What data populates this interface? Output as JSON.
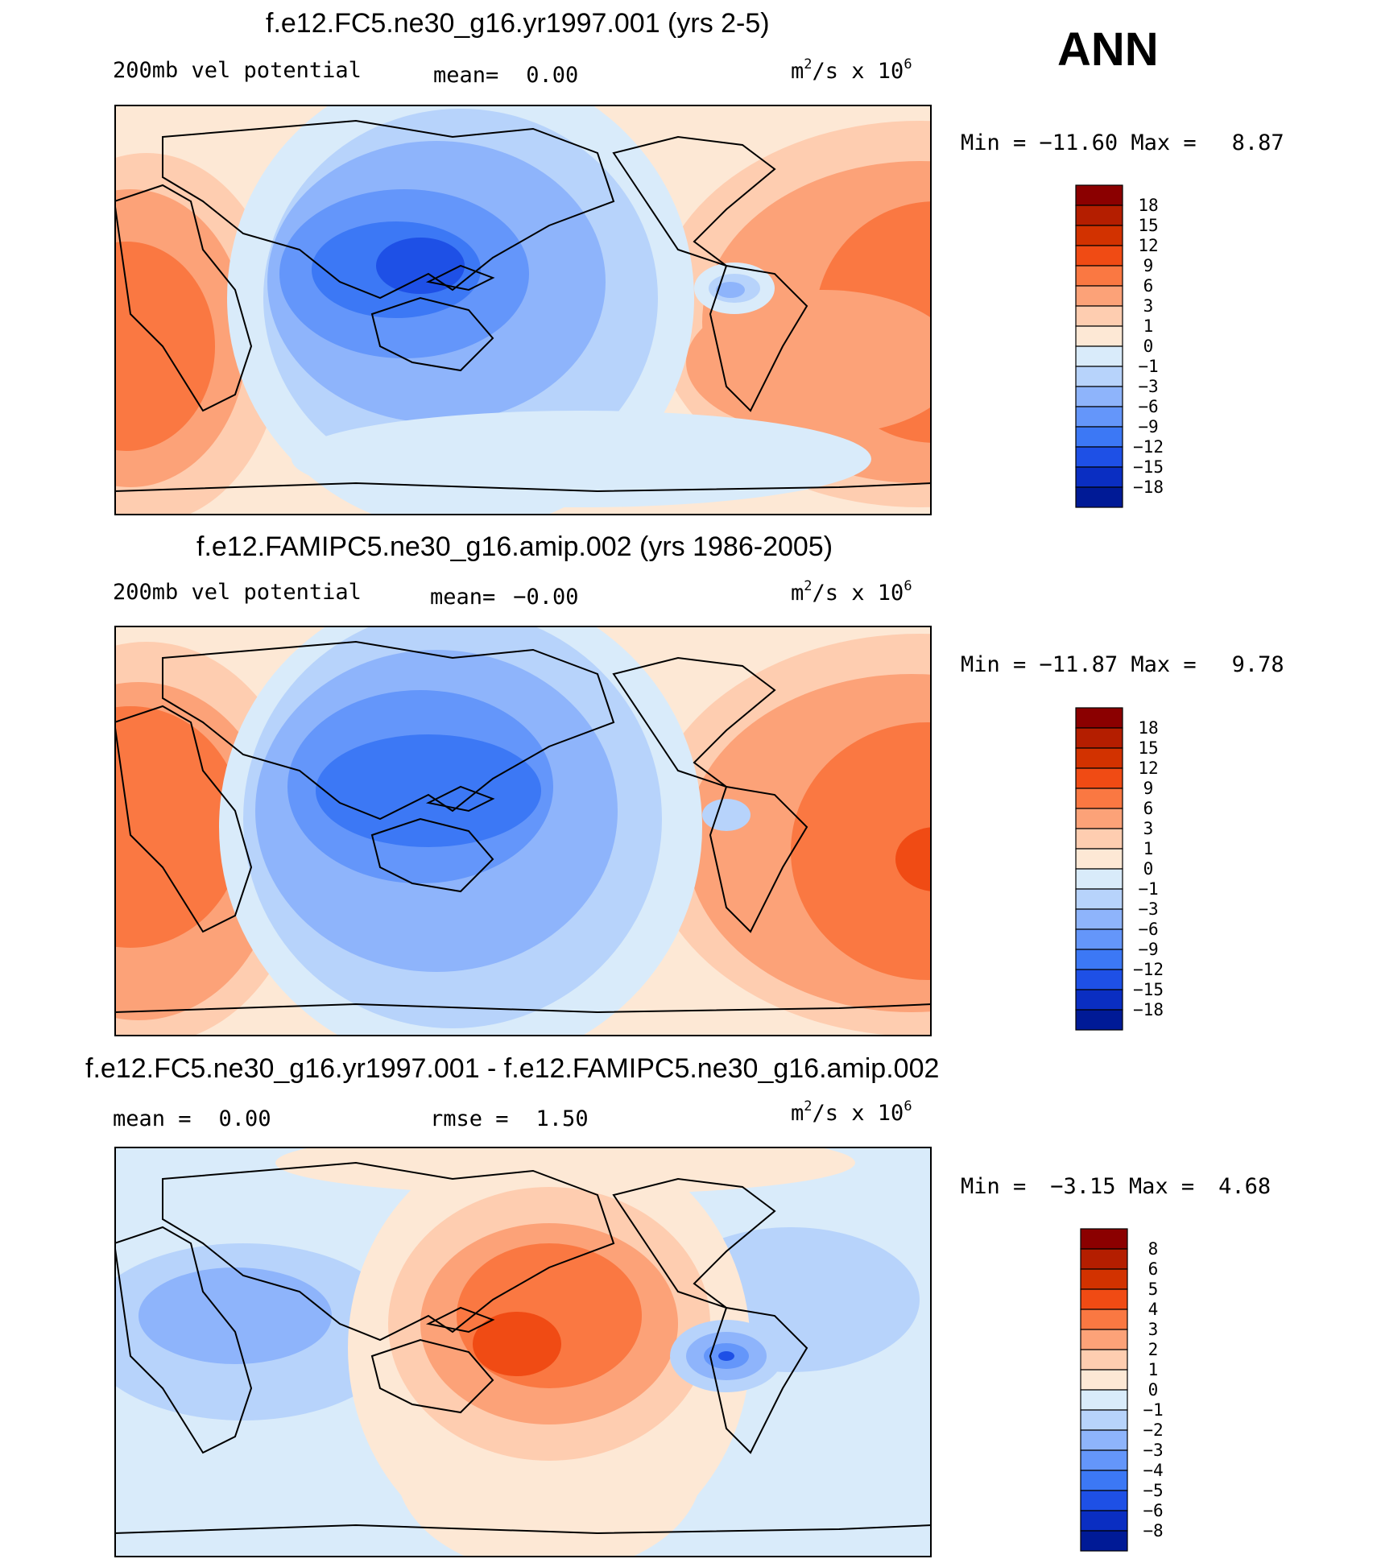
{
  "season": "ANN",
  "panels": [
    {
      "id": "p1",
      "title": "f.e12.FC5.ne30_g16.yr1997.001 (yrs 2-5)",
      "left_label": "200mb vel potential",
      "mid_label": "mean=",
      "mid_value": "0.00",
      "units_base": "m",
      "units_sup1": "2",
      "units_mid": "/s x 10",
      "units_sup2": "6",
      "min_label": "Min =",
      "min_value": "−11.60",
      "max_label": "Max =",
      "max_value": "8.87"
    },
    {
      "id": "p2",
      "title": "f.e12.FAMIPC5.ne30_g16.amip.002 (yrs 1986-2005)",
      "left_label": "200mb vel potential",
      "mid_label": "mean=",
      "mid_value": "−0.00",
      "units_base": "m",
      "units_sup1": "2",
      "units_mid": "/s x 10",
      "units_sup2": "6",
      "min_label": "Min =",
      "min_value": "−11.87",
      "max_label": "Max =",
      "max_value": "9.78"
    },
    {
      "id": "p3",
      "title": "f.e12.FC5.ne30_g16.yr1997.001 - f.e12.FAMIPC5.ne30_g16.amip.002",
      "left_label": "mean =",
      "left_value": "0.00",
      "mid_label": "rmse =",
      "mid_value": "1.50",
      "units_base": "m",
      "units_sup1": "2",
      "units_mid": "/s x 10",
      "units_sup2": "6",
      "min_label": "Min =",
      "min_value": "−3.15",
      "max_label": "Max =",
      "max_value": "4.68"
    }
  ],
  "chart_data": [
    {
      "type": "heatmap",
      "title": "f.e12.FC5.ne30_g16.yr1997.001 (yrs 2-5)",
      "variable": "200mb vel potential",
      "units": "m2/s x 10^6",
      "mean": 0.0,
      "min": -11.6,
      "max": 8.87,
      "colorbar_levels": [
        "18",
        "15",
        "12",
        "9",
        "6",
        "3",
        "1",
        "0",
        "−1",
        "−3",
        "−6",
        "−9",
        "−12",
        "−15",
        "−18"
      ],
      "colors": [
        "#8b0000",
        "#b41e00",
        "#d23200",
        "#f04b14",
        "#fa7842",
        "#fca278",
        "#fecdb0",
        "#fde8d5",
        "#d9ebfa",
        "#b7d3fb",
        "#8eb4fb",
        "#6496fa",
        "#3c78f5",
        "#1e50e6",
        "#0a2ec2",
        "#001a96"
      ]
    },
    {
      "type": "heatmap",
      "title": "f.e12.FAMIPC5.ne30_g16.amip.002 (yrs 1986-2005)",
      "variable": "200mb vel potential",
      "units": "m2/s x 10^6",
      "mean": -0.0,
      "min": -11.87,
      "max": 9.78,
      "colorbar_levels": [
        "18",
        "15",
        "12",
        "9",
        "6",
        "3",
        "1",
        "0",
        "−1",
        "−3",
        "−6",
        "−9",
        "−12",
        "−15",
        "−18"
      ],
      "colors": [
        "#8b0000",
        "#b41e00",
        "#d23200",
        "#f04b14",
        "#fa7842",
        "#fca278",
        "#fecdb0",
        "#fde8d5",
        "#d9ebfa",
        "#b7d3fb",
        "#8eb4fb",
        "#6496fa",
        "#3c78f5",
        "#1e50e6",
        "#0a2ec2",
        "#001a96"
      ]
    },
    {
      "type": "heatmap",
      "title": "f.e12.FC5.ne30_g16.yr1997.001 - f.e12.FAMIPC5.ne30_g16.amip.002",
      "units": "m2/s x 10^6",
      "mean": 0.0,
      "rmse": 1.5,
      "min": -3.15,
      "max": 4.68,
      "colorbar_levels": [
        "8",
        "6",
        "5",
        "4",
        "3",
        "2",
        "1",
        "0",
        "−1",
        "−2",
        "−3",
        "−4",
        "−5",
        "−6",
        "−8"
      ],
      "colors": [
        "#8b0000",
        "#b41e00",
        "#d23200",
        "#f04b14",
        "#fa7842",
        "#fca278",
        "#fecdb0",
        "#fde8d5",
        "#d9ebfa",
        "#b7d3fb",
        "#8eb4fb",
        "#6496fa",
        "#3c78f5",
        "#1e50e6",
        "#0a2ec2",
        "#001a96"
      ]
    }
  ]
}
